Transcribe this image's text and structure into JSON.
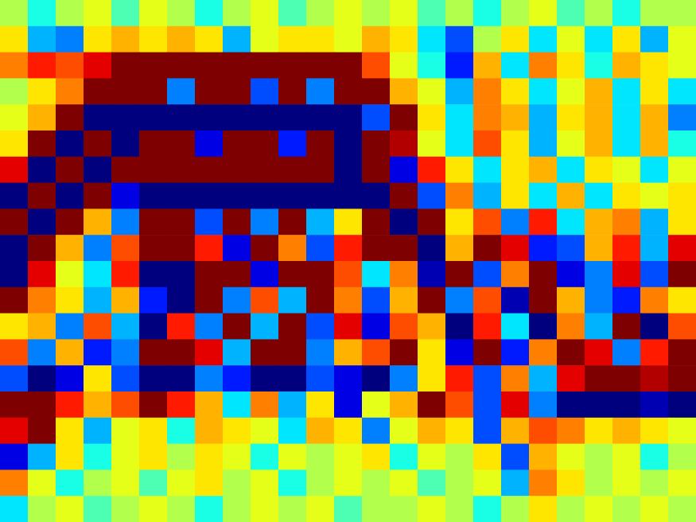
{
  "chart_data": {
    "type": "heatmap",
    "tick_labels": false,
    "zlim": [
      -1,
      1
    ],
    "z": [
      [
        0.1,
        -0.2,
        0.1,
        0.2,
        -0.1,
        0.2,
        0.1,
        -0.2,
        0.1,
        0.2,
        -0.1,
        0.1,
        0.2,
        0.1,
        0.2,
        -0.1,
        0.1,
        -0.2,
        0.1,
        0.2,
        -0.1,
        0.1,
        -0.2,
        0.1,
        0.1
      ],
      [
        0.3,
        -0.4,
        -0.5,
        0.3,
        0.4,
        0.3,
        0.4,
        0.3,
        -0.4,
        0.2,
        0.3,
        0.3,
        0.2,
        0.4,
        0.3,
        -0.3,
        -0.6,
        0.1,
        0.3,
        -0.3,
        0.2,
        -0.3,
        0.3,
        -0.4,
        0.2
      ],
      [
        0.5,
        0.7,
        0.6,
        0.8,
        1,
        1,
        1,
        1,
        1,
        1,
        1,
        1,
        1,
        0.6,
        0.2,
        -0.2,
        -0.7,
        0.4,
        -0.3,
        0.5,
        0.3,
        -0.2,
        0.4,
        0.3,
        0.2
      ],
      [
        0.1,
        0.3,
        0.5,
        1,
        1,
        1,
        -0.5,
        1,
        1,
        -0.6,
        1,
        -0.5,
        1,
        1,
        0.4,
        0.2,
        -0.4,
        0.5,
        0.3,
        -0.3,
        0.2,
        0.4,
        -0.3,
        0.3,
        -0.3
      ],
      [
        0.2,
        0.4,
        1,
        -1,
        -1,
        -1,
        -1,
        -1,
        -1,
        -1,
        -1,
        -1,
        -1,
        -0.6,
        1,
        0.3,
        -0.3,
        0.5,
        0.4,
        -0.4,
        0.3,
        0.4,
        -0.3,
        0.4,
        -0.5
      ],
      [
        0.3,
        1,
        -1,
        1,
        -1,
        1,
        1,
        -0.8,
        1,
        1,
        -0.7,
        1,
        -1,
        1,
        0.9,
        0.2,
        -0.3,
        0.6,
        0.3,
        -0.4,
        0.2,
        0.4,
        -0.3,
        0.4,
        -0.2
      ],
      [
        0.8,
        -1,
        1,
        -1,
        1,
        1,
        1,
        1,
        1,
        1,
        1,
        1,
        -1,
        1,
        -0.8,
        0.7,
        0.3,
        -0.3,
        0.3,
        0.4,
        -0.3,
        0.3,
        0.2,
        -0.3,
        0.2
      ],
      [
        -1,
        1,
        -1,
        1,
        -0.8,
        -1,
        -1,
        -1,
        -1,
        -1,
        -1,
        -1,
        -1,
        -1,
        1,
        -0.6,
        0.5,
        -0.4,
        0.3,
        -0.3,
        0.4,
        -0.3,
        0.3,
        0.2,
        0.3
      ],
      [
        1,
        -1,
        1,
        0.4,
        -0.5,
        1,
        1,
        -0.6,
        1,
        -0.5,
        1,
        -0.4,
        0.3,
        1,
        -1,
        1,
        0.3,
        0.6,
        -0.5,
        0.7,
        -0.3,
        0.4,
        0.5,
        -0.4,
        0.3
      ],
      [
        -1,
        1,
        0.4,
        -0.5,
        0.6,
        1,
        1,
        0.7,
        -0.8,
        1,
        0.5,
        -0.6,
        0.7,
        1,
        1,
        -1,
        0.4,
        1,
        0.8,
        -0.7,
        -0.6,
        0.4,
        0.7,
        -0.4,
        0.8
      ],
      [
        -1,
        0.8,
        0.2,
        -0.3,
        0.7,
        -1,
        -1,
        1,
        1,
        -0.8,
        1,
        1,
        0.6,
        -0.3,
        0.5,
        -0.9,
        1,
        -0.6,
        0.5,
        1,
        -0.8,
        -0.5,
        0.8,
        -0.6,
        1
      ],
      [
        1,
        0.5,
        0.3,
        -0.4,
        0.4,
        -0.7,
        -1,
        1,
        -0.5,
        0.6,
        -0.4,
        1,
        0.5,
        -0.6,
        0.4,
        1,
        -0.5,
        0.6,
        -0.9,
        1,
        0.4,
        -0.5,
        -0.7,
        0.5,
        0.3
      ],
      [
        0.3,
        0.4,
        -0.5,
        0.6,
        -0.4,
        -1,
        0.7,
        -0.5,
        1,
        -0.4,
        1,
        -0.6,
        0.8,
        -0.8,
        0.6,
        0.4,
        -1,
        0.7,
        -0.3,
        -1,
        0.5,
        -0.4,
        1,
        -1,
        0.6
      ],
      [
        0.6,
        -0.5,
        0.4,
        -0.7,
        -0.5,
        1,
        1,
        0.8,
        -0.4,
        1,
        1,
        -0.5,
        0.4,
        0.6,
        1,
        0.3,
        -0.8,
        1,
        -0.7,
        0.5,
        1,
        0.8,
        -0.5,
        0.7,
        1
      ],
      [
        -0.6,
        -1,
        -0.8,
        0.3,
        -0.6,
        -1,
        -1,
        -0.5,
        -0.7,
        -1,
        -1,
        -0.6,
        -0.8,
        -1,
        -0.5,
        0.3,
        0.7,
        -0.6,
        0.5,
        -0.4,
        0.8,
        1,
        1,
        0.9,
        1
      ],
      [
        1,
        1,
        0.7,
        0.4,
        0.6,
        1,
        0.7,
        0.4,
        -0.3,
        0.5,
        -0.4,
        0.3,
        -0.8,
        0.2,
        0.4,
        1,
        0.6,
        -0.6,
        0.8,
        -0.5,
        -1,
        -1,
        -1,
        -0.9,
        -1
      ],
      [
        0.8,
        1,
        0.3,
        -0.4,
        0.2,
        0.3,
        -0.2,
        0.4,
        0.3,
        0.2,
        -0.3,
        0.4,
        0.3,
        -0.5,
        0.2,
        0.4,
        0.3,
        -0.6,
        0.4,
        0.6,
        0.5,
        0.3,
        0.4,
        0.3,
        0.2
      ],
      [
        -0.8,
        -0.4,
        0.3,
        -0.2,
        0.2,
        0.3,
        0.1,
        0.3,
        0.2,
        -0.2,
        0.2,
        0.1,
        0.2,
        0.3,
        -0.2,
        0.2,
        0.1,
        0.3,
        -0.6,
        0.4,
        0.2,
        0.1,
        0.2,
        -0.2,
        0.1
      ],
      [
        0.5,
        0.2,
        -0.2,
        0.1,
        0.2,
        -0.1,
        0.2,
        0.3,
        0.1,
        0.2,
        -0.2,
        0.1,
        0.2,
        0.1,
        0.2,
        -0.1,
        0.1,
        0.2,
        -0.4,
        0.5,
        0.3,
        0.1,
        0.2,
        0.1,
        0.2
      ],
      [
        -0.3,
        0.1,
        0.2,
        -0.1,
        0.1,
        0.2,
        0.1,
        -0.2,
        0.1,
        0.2,
        0.1,
        0.2,
        -0.1,
        0.1,
        0.1,
        0.2,
        0.1,
        -0.2,
        0.1,
        0.3,
        0.1,
        0.2,
        0.1,
        0.2,
        0.1
      ]
    ]
  }
}
